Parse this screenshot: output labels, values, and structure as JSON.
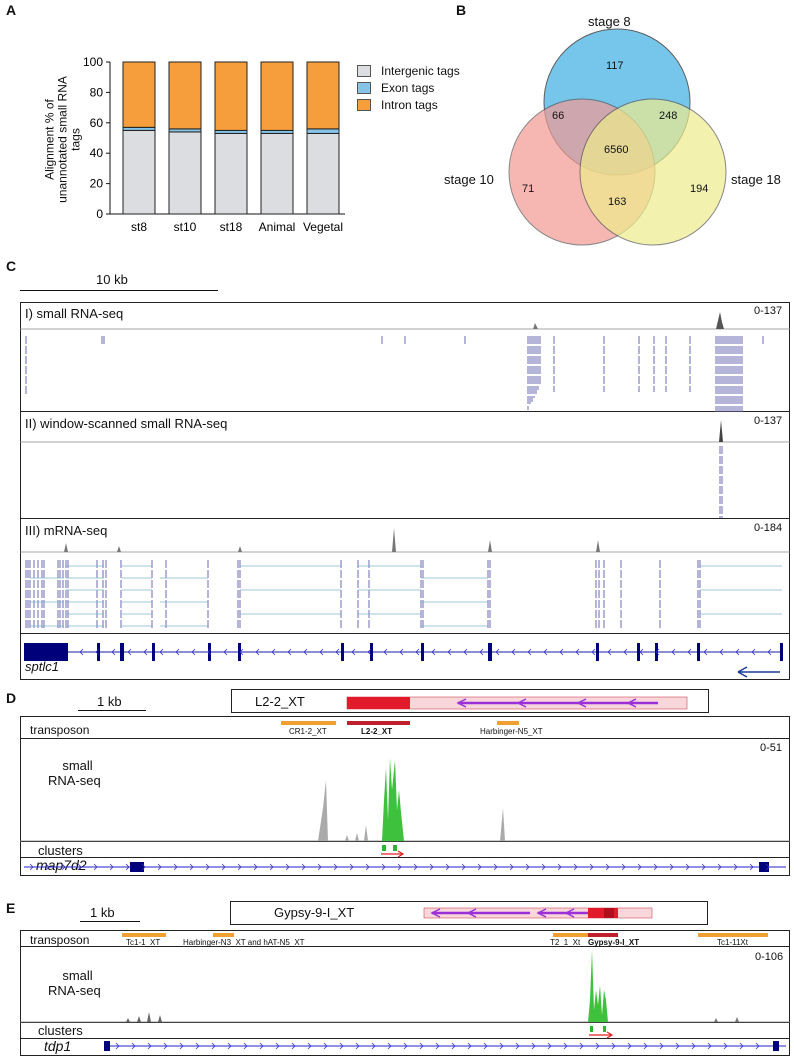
{
  "panels": {
    "a": "A",
    "b": "B",
    "c": "C",
    "d": "D",
    "e": "E"
  },
  "chart_data": {
    "type": "bar",
    "stacked": true,
    "categories": [
      "st8",
      "st10",
      "st18",
      "Animal",
      "Vegetal"
    ],
    "series": [
      {
        "name": "Intergenic tags",
        "color": "#dcdde1",
        "values": [
          55,
          54,
          53,
          53,
          53
        ]
      },
      {
        "name": "Exon tags",
        "color": "#86c3e6",
        "values": [
          2,
          2,
          2,
          2,
          3
        ]
      },
      {
        "name": "Intron tags",
        "color": "#f79e3c",
        "values": [
          43,
          44,
          45,
          45,
          44
        ]
      }
    ],
    "ylabel": "Alignment % of unannotated small RNA tags",
    "ylim": [
      0,
      100
    ],
    "yticks": [
      "0",
      "20",
      "40",
      "60",
      "80",
      "100"
    ]
  },
  "venn": {
    "stage8": "stage 8",
    "stage10": "stage 10",
    "stage18": "stage 18",
    "only8": "117",
    "only10": "71",
    "only18": "194",
    "s8_10": "66",
    "s8_18": "248",
    "s10_18": "163",
    "all": "6560",
    "colors": {
      "stage8": "#6fc3ec",
      "stage10": "#f39a93",
      "stage18": "#eeec8c"
    }
  },
  "panel_c": {
    "scale": "10 kb",
    "track1": "I) small RNA-seq",
    "range1": "0-137",
    "track2": "II) window-scanned small RNA-seq",
    "range2": "0-137",
    "track3": "III) mRNA-seq",
    "range3": "0-184",
    "gene": "sptlc1"
  },
  "panel_d": {
    "scale": "1 kb",
    "element": "L2-2_XT",
    "track_transposon": "transposon",
    "te_left": "CR1-2_XT",
    "te_main": "L2-2_XT",
    "te_right": "Harbinger-N5_XT",
    "range": "0-51",
    "track_small": "small",
    "track_small2": "RNA-seq",
    "track_clusters": "clusters",
    "gene": "map7d2"
  },
  "panel_e": {
    "scale": "1 kb",
    "element": "Gypsy-9-I_XT",
    "track_transposon": "transposon",
    "te_1": "Tc1-1_XT",
    "te_2": "Harbinger-N3_XT and hAT-N5_XT",
    "te_3": "T2_1_Xt",
    "te_main": "Gypsy-9-I_XT",
    "te_4": "Tc1-11Xt",
    "range": "0-106",
    "track_small": "small",
    "track_small2": "RNA-seq",
    "track_clusters": "clusters",
    "gene": "tdp1"
  }
}
